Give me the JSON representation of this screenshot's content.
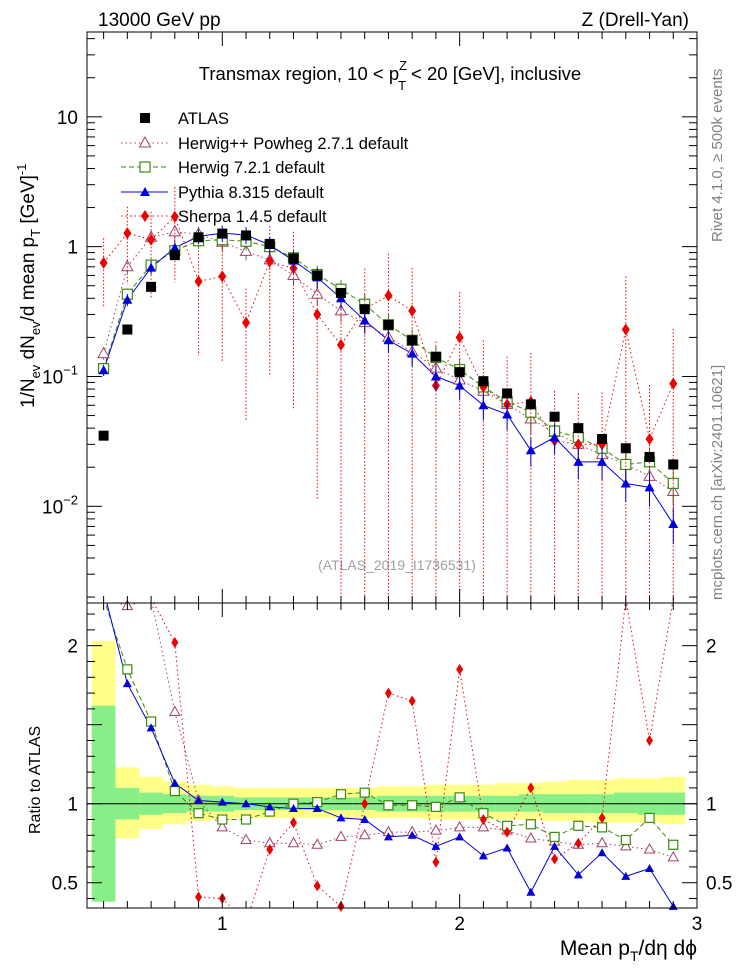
{
  "header": {
    "left": "13000 GeV pp",
    "right": "Z (Drell-Yan)"
  },
  "side_labels": {
    "rivet": "Rivet 4.1.0, ≥ 500k events",
    "mcplots": "mcplots.cern.ch [arXiv:2401.10621]"
  },
  "chart_data": {
    "type": "scatter",
    "title": "Transmax region, 10 < p_T^Z < 20 [GeV], inclusive",
    "title_parts": {
      "a": "Transmax region, 10 < p",
      "sup": "Z",
      "sub": "T",
      "b": "< 20 [GeV], inclusive"
    },
    "analysis_id": "(ATLAS_2019_I1736531)",
    "xlabel": "Mean p_T/dη dϕ",
    "xlabel_parts": {
      "a": "Mean p",
      "sub": "T",
      "b": "/dη dϕ"
    },
    "ylabel": "1/N_ev dN_ev/d mean p_T [GeV]^-1",
    "ylabel_parts": {
      "a": "1/N",
      "sub1": "ev",
      "b": " dN",
      "sub2": "ev",
      "c": "/d mean p",
      "sub3": "T",
      "d": " [GeV]",
      "sup": "-1"
    },
    "ratio_ylabel": "Ratio to ATLAS",
    "xlim": [
      0.43,
      3.0
    ],
    "ylim": [
      0.0018,
      45
    ],
    "ratio_ylim": [
      0.34,
      2.27
    ],
    "x_ticks": [
      {
        "v": 1,
        "label": "1"
      },
      {
        "v": 2,
        "label": "2"
      },
      {
        "v": 3,
        "label": "3"
      }
    ],
    "y_ticks": [
      {
        "v": 0.01,
        "base": "10",
        "exp": "−2"
      },
      {
        "v": 0.1,
        "base": "10",
        "exp": "−1"
      },
      {
        "v": 1,
        "base": "1",
        "exp": ""
      },
      {
        "v": 10,
        "base": "10",
        "exp": ""
      }
    ],
    "ratio_ticks": [
      {
        "v": 0.5,
        "label": "0.5"
      },
      {
        "v": 1,
        "label": "1"
      },
      {
        "v": 2,
        "label": "2"
      }
    ],
    "x": [
      0.5,
      0.6,
      0.7,
      0.8,
      0.9,
      1.0,
      1.1,
      1.2,
      1.3,
      1.4,
      1.5,
      1.6,
      1.7,
      1.8,
      1.9,
      2.0,
      2.1,
      2.2,
      2.3,
      2.4,
      2.5,
      2.6,
      2.7,
      2.8,
      2.9
    ],
    "bin_edges": [
      0.45,
      0.55,
      0.65,
      0.75,
      0.85,
      0.95,
      1.05,
      1.15,
      1.25,
      1.35,
      1.45,
      1.55,
      1.65,
      1.75,
      1.85,
      1.95,
      2.05,
      2.15,
      2.25,
      2.35,
      2.45,
      2.55,
      2.65,
      2.75,
      2.85,
      2.95
    ],
    "band_outer": [
      [
        0.45,
        2.03
      ],
      [
        0.78,
        1.23
      ],
      [
        0.84,
        1.17
      ],
      [
        0.87,
        1.14
      ],
      [
        0.89,
        1.12
      ],
      [
        0.9,
        1.11
      ],
      [
        0.91,
        1.1
      ],
      [
        0.91,
        1.1
      ],
      [
        0.91,
        1.1
      ],
      [
        0.91,
        1.1
      ],
      [
        0.91,
        1.1
      ],
      [
        0.91,
        1.1
      ],
      [
        0.91,
        1.11
      ],
      [
        0.91,
        1.11
      ],
      [
        0.9,
        1.12
      ],
      [
        0.9,
        1.12
      ],
      [
        0.9,
        1.12
      ],
      [
        0.9,
        1.13
      ],
      [
        0.9,
        1.13
      ],
      [
        0.89,
        1.14
      ],
      [
        0.89,
        1.15
      ],
      [
        0.88,
        1.15
      ],
      [
        0.88,
        1.16
      ],
      [
        0.88,
        1.16
      ],
      [
        0.87,
        1.17
      ]
    ],
    "band_inner": [
      [
        0.38,
        1.62
      ],
      [
        0.9,
        1.1
      ],
      [
        0.93,
        1.07
      ],
      [
        0.94,
        1.06
      ],
      [
        0.95,
        1.05
      ],
      [
        0.95,
        1.05
      ],
      [
        0.96,
        1.04
      ],
      [
        0.96,
        1.04
      ],
      [
        0.96,
        1.04
      ],
      [
        0.96,
        1.04
      ],
      [
        0.96,
        1.04
      ],
      [
        0.96,
        1.04
      ],
      [
        0.95,
        1.05
      ],
      [
        0.95,
        1.05
      ],
      [
        0.95,
        1.05
      ],
      [
        0.95,
        1.05
      ],
      [
        0.95,
        1.05
      ],
      [
        0.95,
        1.05
      ],
      [
        0.95,
        1.06
      ],
      [
        0.94,
        1.06
      ],
      [
        0.94,
        1.06
      ],
      [
        0.94,
        1.06
      ],
      [
        0.94,
        1.07
      ],
      [
        0.93,
        1.07
      ],
      [
        0.93,
        1.07
      ]
    ],
    "series": [
      {
        "name": "ATLAS",
        "color": "#000000",
        "marker": "square-filled",
        "line": "none",
        "values": [
          0.035,
          0.23,
          0.49,
          0.86,
          1.18,
          1.26,
          1.22,
          1.05,
          0.81,
          0.6,
          0.44,
          0.33,
          0.25,
          0.19,
          0.142,
          0.108,
          0.092,
          0.074,
          0.061,
          0.049,
          0.04,
          0.033,
          0.028,
          0.024,
          0.021
        ],
        "ratio": [
          1,
          1,
          1,
          1,
          1,
          1,
          1,
          1,
          1,
          1,
          1,
          1,
          1,
          1,
          1,
          1,
          1,
          1,
          1,
          1,
          1,
          1,
          1,
          1,
          1
        ]
      },
      {
        "name": "Herwig++ Powheg 2.7.1 default",
        "color": "#a0406a",
        "marker": "triangle-open",
        "line": "dotted",
        "values": [
          0.15,
          0.7,
          1.18,
          1.3,
          1.25,
          1.08,
          0.92,
          0.79,
          0.6,
          0.43,
          0.32,
          0.26,
          0.2,
          0.155,
          0.116,
          0.094,
          0.077,
          0.061,
          0.047,
          0.037,
          0.03,
          0.025,
          0.021,
          0.017,
          0.013
        ],
        "ratio": [
          2.3,
          2.25,
          2.3,
          1.58,
          1.02,
          0.85,
          0.77,
          0.75,
          0.75,
          0.74,
          0.79,
          0.8,
          0.82,
          0.82,
          0.83,
          0.85,
          0.85,
          0.83,
          0.78,
          0.76,
          0.74,
          0.75,
          0.73,
          0.71,
          0.66
        ]
      },
      {
        "name": "Herwig 7.2.1 default",
        "color": "#3a8a10",
        "marker": "square-open",
        "line": "dashed",
        "values": [
          0.115,
          0.43,
          0.72,
          0.93,
          1.11,
          1.13,
          1.1,
          1.0,
          0.82,
          0.61,
          0.47,
          0.36,
          0.25,
          0.19,
          0.14,
          0.113,
          0.083,
          0.064,
          0.053,
          0.038,
          0.034,
          0.028,
          0.021,
          0.022,
          0.015
        ],
        "ratio": [
          2.3,
          1.85,
          1.52,
          1.08,
          0.94,
          0.9,
          0.9,
          0.95,
          1.0,
          1.01,
          1.06,
          1.07,
          0.99,
          0.99,
          0.98,
          1.04,
          0.94,
          0.86,
          0.87,
          0.79,
          0.86,
          0.85,
          0.77,
          0.91,
          0.74
        ]
      },
      {
        "name": "Pythia 8.315 default",
        "color": "#0000dd",
        "marker": "triangle-filled",
        "line": "solid",
        "values": [
          0.112,
          0.39,
          0.69,
          0.98,
          1.2,
          1.27,
          1.23,
          1.03,
          0.78,
          0.58,
          0.4,
          0.27,
          0.19,
          0.15,
          0.1,
          0.085,
          0.06,
          0.051,
          0.027,
          0.034,
          0.022,
          0.022,
          0.015,
          0.014,
          0.0073
        ],
        "ratio": [
          2.35,
          1.76,
          1.48,
          1.13,
          1.02,
          1.01,
          1.0,
          0.98,
          0.97,
          0.97,
          0.91,
          0.9,
          0.79,
          0.8,
          0.73,
          0.79,
          0.67,
          0.72,
          0.44,
          0.73,
          0.55,
          0.69,
          0.54,
          0.59,
          0.35
        ]
      },
      {
        "name": "Sherpa 1.4.5 default",
        "color": "#ee0000",
        "marker": "diamond-filled",
        "line": "dotted",
        "values": [
          0.75,
          1.27,
          1.13,
          1.7,
          0.54,
          0.59,
          0.26,
          0.77,
          0.68,
          0.3,
          0.175,
          0.33,
          0.42,
          0.32,
          0.085,
          0.2,
          0.083,
          0.061,
          0.064,
          0.032,
          0.03,
          0.03,
          0.23,
          0.033,
          0.088
        ],
        "ratio": [
          2.35,
          2.35,
          2.3,
          2.02,
          0.41,
          0.4,
          0.25,
          0.71,
          0.88,
          0.48,
          0.35,
          1.0,
          1.7,
          1.65,
          0.63,
          1.85,
          0.9,
          0.82,
          1.1,
          0.65,
          0.75,
          0.91,
          2.3,
          1.4,
          2.3
        ]
      }
    ]
  }
}
